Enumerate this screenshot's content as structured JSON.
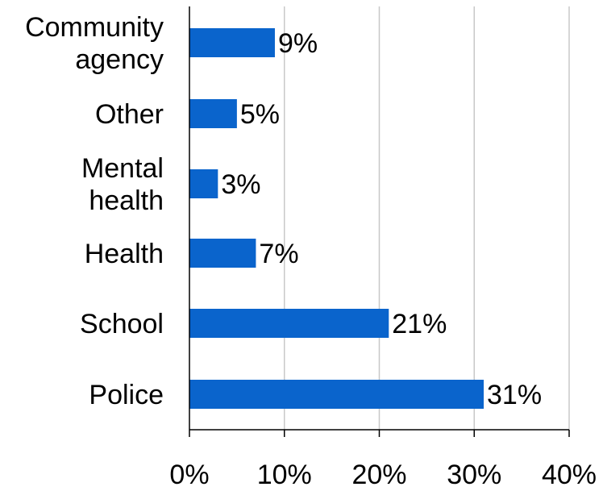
{
  "chart_data": {
    "type": "bar",
    "orientation": "horizontal",
    "categories": [
      "Community agency",
      "Other",
      "Mental health",
      "Health",
      "School",
      "Police"
    ],
    "category_lines": [
      [
        "Community",
        "agency"
      ],
      [
        "Other"
      ],
      [
        "Mental",
        "health"
      ],
      [
        "Health"
      ],
      [
        "School"
      ],
      [
        "Police"
      ]
    ],
    "values": [
      9,
      5,
      3,
      7,
      21,
      31
    ],
    "value_labels": [
      "9%",
      "5%",
      "3%",
      "7%",
      "21%",
      "31%"
    ],
    "xlim": [
      0,
      40
    ],
    "xticks": [
      0,
      10,
      20,
      30,
      40
    ],
    "xtick_labels": [
      "0%",
      "10%",
      "20%",
      "30%",
      "40%"
    ],
    "grid": "vertical",
    "legend": "none",
    "title": "",
    "xlabel": "",
    "ylabel": "",
    "colors": {
      "bar": "#0A64CC",
      "grid": "#C8C8C8",
      "axis": "#000000"
    }
  }
}
